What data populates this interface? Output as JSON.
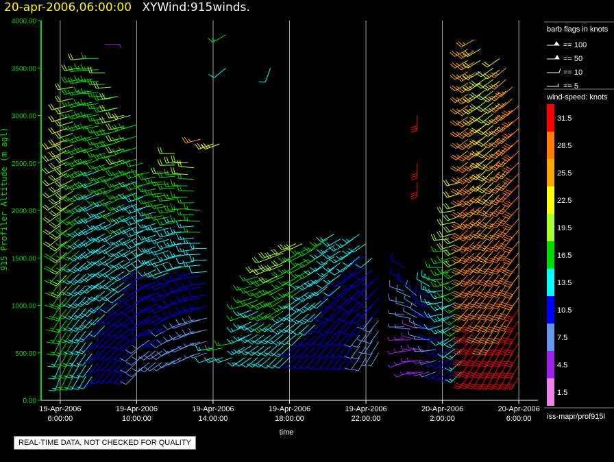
{
  "header": {
    "datetime": "20-apr-2006,06:00:00",
    "product": "XYWind:915winds."
  },
  "footer_note": "REAL-TIME DATA, NOT CHECKED FOR QUALITY",
  "source_label": "iss-mapr/prof915l",
  "barb_legend": {
    "title": "barb flags in knots",
    "items": [
      "== 100",
      "== 50",
      "== 10",
      "== 5"
    ]
  },
  "speed_legend": {
    "title": "wind-speed: knots",
    "bins": [
      {
        "label": "31.5",
        "color": "#ff0000"
      },
      {
        "label": "28.5",
        "color": "#ff7f00"
      },
      {
        "label": "25.5",
        "color": "#ffa500"
      },
      {
        "label": "22.5",
        "color": "#ffff00"
      },
      {
        "label": "19.5",
        "color": "#aaff33"
      },
      {
        "label": "16.5",
        "color": "#00dd00"
      },
      {
        "label": "13.5",
        "color": "#00ffff"
      },
      {
        "label": "10.5",
        "color": "#0000ff"
      },
      {
        "label": "7.5",
        "color": "#6495ed"
      },
      {
        "label": "4.5",
        "color": "#a020f0"
      },
      {
        "label": "1.5",
        "color": "#ee82ee"
      }
    ]
  },
  "chart_data": {
    "type": "scatter",
    "subtype": "wind-barb time-height",
    "xlabel": "time",
    "ylabel": "915 Profiler Altitude (m agl)",
    "xlim": [
      "2006-04-19 05:00",
      "2006-04-20 07:00"
    ],
    "ylim": [
      0,
      4000
    ],
    "y_ticks": [
      "0.00",
      "500.00",
      "1000.00",
      "1500.00",
      "2000.00",
      "2500.00",
      "3000.00",
      "3500.00",
      "4000.00"
    ],
    "x_ticks": [
      {
        "time": "2006-04-19 06:00",
        "date": "19-Apr-2006",
        "clock": "6:00:00"
      },
      {
        "time": "2006-04-19 10:00",
        "date": "19-Apr-2006",
        "clock": "10:00:00"
      },
      {
        "time": "2006-04-19 14:00",
        "date": "19-Apr-2006",
        "clock": "14:00:00"
      },
      {
        "time": "2006-04-19 18:00",
        "date": "19-Apr-2006",
        "clock": "18:00:00"
      },
      {
        "time": "2006-04-19 22:00",
        "date": "19-Apr-2006",
        "clock": "22:00:00"
      },
      {
        "time": "2006-04-20 02:00",
        "date": "20-Apr-2006",
        "clock": "2:00:00"
      },
      {
        "time": "2006-04-20 06:00",
        "date": "20-Apr-2006",
        "clock": "6:00:00"
      }
    ],
    "grid": "vertical lines at x ticks",
    "speed_units": "knots",
    "profiles": [
      {
        "time": "2006-04-19 06:00",
        "bottom": 250,
        "top": 2700,
        "spd0": 14,
        "spd1": 21,
        "dir0": 200,
        "dir1": 250
      },
      {
        "time": "2006-04-19 06:20",
        "bottom": 250,
        "top": 3100,
        "spd0": 16,
        "spd1": 22,
        "dir0": 205,
        "dir1": 255
      },
      {
        "time": "2006-04-19 06:40",
        "bottom": 250,
        "top": 3300,
        "spd0": 15,
        "spd1": 20,
        "dir0": 205,
        "dir1": 260
      },
      {
        "time": "2006-04-19 07:00",
        "bottom": 250,
        "top": 3500,
        "spd0": 13,
        "spd1": 18,
        "dir0": 210,
        "dir1": 260
      },
      {
        "time": "2006-04-19 07:20",
        "bottom": 250,
        "top": 3600,
        "spd0": 12,
        "spd1": 18,
        "dir0": 210,
        "dir1": 265
      },
      {
        "time": "2006-04-19 07:40",
        "bottom": 250,
        "top": 3500,
        "spd0": 12,
        "spd1": 17,
        "dir0": 215,
        "dir1": 265
      },
      {
        "time": "2006-04-19 08:00",
        "bottom": 280,
        "top": 3600,
        "spd0": 11,
        "spd1": 17,
        "dir0": 215,
        "dir1": 270
      },
      {
        "time": "2006-04-19 08:20",
        "bottom": 300,
        "top": 3450,
        "spd0": 11,
        "spd1": 18,
        "dir0": 215,
        "dir1": 270
      },
      {
        "time": "2006-04-19 08:40",
        "bottom": 300,
        "top": 3300,
        "spd0": 10,
        "spd1": 18,
        "dir0": 220,
        "dir1": 265
      },
      {
        "time": "2006-04-19 09:00",
        "bottom": 300,
        "top": 3200,
        "spd0": 10,
        "spd1": 19,
        "dir0": 220,
        "dir1": 260
      },
      {
        "time": "2006-04-19 09:20",
        "bottom": 300,
        "top": 3000,
        "spd0": 9,
        "spd1": 20,
        "dir0": 220,
        "dir1": 260
      },
      {
        "time": "2006-04-19 09:40",
        "bottom": 280,
        "top": 3000,
        "spd0": 9,
        "spd1": 18,
        "dir0": 225,
        "dir1": 255
      },
      {
        "time": "2006-04-19 10:00",
        "bottom": 280,
        "top": 2900,
        "spd0": 8,
        "spd1": 17,
        "dir0": 225,
        "dir1": 255
      },
      {
        "time": "2006-04-19 10:20",
        "bottom": 350,
        "top": 2500,
        "spd0": 8,
        "spd1": 16,
        "dir0": 230,
        "dir1": 255
      },
      {
        "time": "2006-04-19 10:40",
        "bottom": 400,
        "top": 2400,
        "spd0": 8,
        "spd1": 16,
        "dir0": 230,
        "dir1": 260
      },
      {
        "time": "2006-04-19 11:00",
        "bottom": 400,
        "top": 2350,
        "spd0": 8,
        "spd1": 16,
        "dir0": 230,
        "dir1": 260
      },
      {
        "time": "2006-04-19 11:20",
        "bottom": 400,
        "top": 2300,
        "spd0": 8,
        "spd1": 17,
        "dir0": 235,
        "dir1": 265
      },
      {
        "time": "2006-04-19 11:40",
        "bottom": 400,
        "top": 2400,
        "spd0": 7,
        "spd1": 18,
        "dir0": 235,
        "dir1": 265
      },
      {
        "time": "2006-04-19 12:00",
        "bottom": 420,
        "top": 2600,
        "spd0": 7,
        "spd1": 19,
        "dir0": 240,
        "dir1": 270
      },
      {
        "time": "2006-04-19 12:20",
        "bottom": 450,
        "top": 2500,
        "spd0": 7,
        "spd1": 18,
        "dir0": 240,
        "dir1": 270
      },
      {
        "time": "2006-04-19 12:40",
        "bottom": 450,
        "top": 2500,
        "spd0": 6,
        "spd1": 19,
        "dir0": 245,
        "dir1": 275
      },
      {
        "time": "2006-04-19 13:00",
        "bottom": 480,
        "top": 2450,
        "spd0": 6,
        "spd1": 18,
        "dir0": 245,
        "dir1": 275
      },
      {
        "time": "2006-04-19 13:20",
        "bottom": 500,
        "top": 2000,
        "spd0": 6,
        "spd1": 17,
        "dir0": 250,
        "dir1": 275
      },
      {
        "time": "2006-04-19 13:40",
        "bottom": 500,
        "top": 1600,
        "spd0": 6,
        "spd1": 14,
        "dir0": 250,
        "dir1": 270
      },
      {
        "time": "2006-04-19 14:00",
        "bottom": 450,
        "top": 550,
        "spd0": 12,
        "spd1": 14,
        "dir0": 250,
        "dir1": 260
      },
      {
        "time": "2006-04-19 14:30",
        "bottom": 450,
        "top": 550,
        "spd0": 13,
        "spd1": 15,
        "dir0": 250,
        "dir1": 260
      },
      {
        "time": "2006-04-19 15:00",
        "bottom": 450,
        "top": 600,
        "spd0": 14,
        "spd1": 15,
        "dir0": 250,
        "dir1": 260
      },
      {
        "time": "2006-04-19 15:40",
        "bottom": 450,
        "top": 1000,
        "spd0": 13,
        "spd1": 16,
        "dir0": 235,
        "dir1": 255
      },
      {
        "time": "2006-04-19 16:00",
        "bottom": 450,
        "top": 1200,
        "spd0": 12,
        "spd1": 16,
        "dir0": 235,
        "dir1": 255
      },
      {
        "time": "2006-04-19 16:20",
        "bottom": 450,
        "top": 1300,
        "spd0": 12,
        "spd1": 17,
        "dir0": 230,
        "dir1": 255
      },
      {
        "time": "2006-04-19 16:40",
        "bottom": 450,
        "top": 1400,
        "spd0": 13,
        "spd1": 18,
        "dir0": 230,
        "dir1": 250
      },
      {
        "time": "2006-04-19 17:00",
        "bottom": 450,
        "top": 1500,
        "spd0": 13,
        "spd1": 19,
        "dir0": 230,
        "dir1": 250
      },
      {
        "time": "2006-04-19 17:20",
        "bottom": 450,
        "top": 1550,
        "spd0": 12,
        "spd1": 20,
        "dir0": 225,
        "dir1": 250
      },
      {
        "time": "2006-04-19 17:40",
        "bottom": 450,
        "top": 1550,
        "spd0": 12,
        "spd1": 19,
        "dir0": 225,
        "dir1": 250
      },
      {
        "time": "2006-04-19 18:00",
        "bottom": 450,
        "top": 1600,
        "spd0": 12,
        "spd1": 19,
        "dir0": 225,
        "dir1": 245
      },
      {
        "time": "2006-04-19 18:20",
        "bottom": 450,
        "top": 1650,
        "spd0": 11,
        "spd1": 18,
        "dir0": 225,
        "dir1": 245
      },
      {
        "time": "2006-04-19 18:40",
        "bottom": 450,
        "top": 1650,
        "spd0": 11,
        "spd1": 18,
        "dir0": 220,
        "dir1": 245
      },
      {
        "time": "2006-04-19 19:00",
        "bottom": 450,
        "top": 1600,
        "spd0": 10,
        "spd1": 17,
        "dir0": 220,
        "dir1": 245
      },
      {
        "time": "2006-04-19 19:20",
        "bottom": 450,
        "top": 1600,
        "spd0": 10,
        "spd1": 17,
        "dir0": 220,
        "dir1": 240
      },
      {
        "time": "2006-04-19 19:40",
        "bottom": 450,
        "top": 1650,
        "spd0": 10,
        "spd1": 16,
        "dir0": 220,
        "dir1": 240
      },
      {
        "time": "2006-04-19 20:00",
        "bottom": 450,
        "top": 1700,
        "spd0": 9,
        "spd1": 15,
        "dir0": 215,
        "dir1": 240
      },
      {
        "time": "2006-04-19 20:20",
        "bottom": 450,
        "top": 1750,
        "spd0": 9,
        "spd1": 14,
        "dir0": 215,
        "dir1": 240
      },
      {
        "time": "2006-04-19 20:40",
        "bottom": 450,
        "top": 1700,
        "spd0": 9,
        "spd1": 14,
        "dir0": 215,
        "dir1": 240
      },
      {
        "time": "2006-04-19 21:00",
        "bottom": 450,
        "top": 1650,
        "spd0": 9,
        "spd1": 13,
        "dir0": 215,
        "dir1": 240
      },
      {
        "time": "2006-04-19 21:20",
        "bottom": 450,
        "top": 1700,
        "spd0": 9,
        "spd1": 13,
        "dir0": 215,
        "dir1": 235
      },
      {
        "time": "2006-04-19 21:40",
        "bottom": 450,
        "top": 1750,
        "spd0": 8,
        "spd1": 13,
        "dir0": 215,
        "dir1": 235
      },
      {
        "time": "2006-04-19 22:00",
        "bottom": 450,
        "top": 1650,
        "spd0": 8,
        "spd1": 12,
        "dir0": 210,
        "dir1": 235
      },
      {
        "time": "2006-04-19 22:20",
        "bottom": 500,
        "top": 1500,
        "spd0": 7,
        "spd1": 12,
        "dir0": 210,
        "dir1": 230
      },
      {
        "time": "2006-04-19 22:40",
        "bottom": 500,
        "top": 1300,
        "spd0": 7,
        "spd1": 11,
        "dir0": 210,
        "dir1": 230
      },
      {
        "time": "2006-04-20 00:00",
        "bottom": 400,
        "top": 1400,
        "spd0": 4,
        "spd1": 10,
        "dir0": 250,
        "dir1": 300
      },
      {
        "time": "2006-04-20 00:20",
        "bottom": 300,
        "top": 1200,
        "spd0": 4,
        "spd1": 9,
        "dir0": 250,
        "dir1": 300
      },
      {
        "time": "2006-04-20 00:40",
        "bottom": 300,
        "top": 1100,
        "spd0": 3,
        "spd1": 8,
        "dir0": 260,
        "dir1": 310
      },
      {
        "time": "2006-04-20 01:00",
        "bottom": 300,
        "top": 1000,
        "spd0": 3,
        "spd1": 9,
        "dir0": 260,
        "dir1": 310
      },
      {
        "time": "2006-04-20 01:20",
        "bottom": 300,
        "top": 1200,
        "spd0": 4,
        "spd1": 12,
        "dir0": 255,
        "dir1": 300
      },
      {
        "time": "2006-04-20 01:40",
        "bottom": 300,
        "top": 1250,
        "spd0": 6,
        "spd1": 14,
        "dir0": 250,
        "dir1": 290
      },
      {
        "time": "2006-04-20 02:00",
        "bottom": 300,
        "top": 1400,
        "spd0": 9,
        "spd1": 16,
        "dir0": 240,
        "dir1": 270
      },
      {
        "time": "2006-04-20 02:20",
        "bottom": 300,
        "top": 1700,
        "spd0": 10,
        "spd1": 18,
        "dir0": 235,
        "dir1": 265
      },
      {
        "time": "2006-04-20 02:40",
        "bottom": 300,
        "top": 2000,
        "spd0": 11,
        "spd1": 20,
        "dir0": 230,
        "dir1": 260
      },
      {
        "time": "2006-04-20 03:00",
        "bottom": 300,
        "top": 2300,
        "spd0": 13,
        "spd1": 22,
        "dir0": 225,
        "dir1": 255
      },
      {
        "time": "2006-04-20 03:20",
        "bottom": 250,
        "top": 3700,
        "spd0": 31,
        "spd1": 24,
        "dir0": 215,
        "dir1": 240
      },
      {
        "time": "2006-04-20 03:40",
        "bottom": 250,
        "top": 3800,
        "spd0": 31,
        "spd1": 25,
        "dir0": 215,
        "dir1": 240
      },
      {
        "time": "2006-04-20 04:00",
        "bottom": 250,
        "top": 3700,
        "spd0": 31,
        "spd1": 22,
        "dir0": 215,
        "dir1": 240
      },
      {
        "time": "2006-04-20 04:20",
        "bottom": 250,
        "top": 3400,
        "spd0": 31,
        "spd1": 20,
        "dir0": 210,
        "dir1": 235
      },
      {
        "time": "2006-04-20 04:40",
        "bottom": 250,
        "top": 3500,
        "spd0": 31,
        "spd1": 19,
        "dir0": 210,
        "dir1": 235
      },
      {
        "time": "2006-04-20 05:00",
        "bottom": 250,
        "top": 3600,
        "spd0": 31,
        "spd1": 22,
        "dir0": 210,
        "dir1": 235
      },
      {
        "time": "2006-04-20 05:20",
        "bottom": 250,
        "top": 3500,
        "spd0": 31,
        "spd1": 24,
        "dir0": 210,
        "dir1": 230
      },
      {
        "time": "2006-04-20 05:40",
        "bottom": 250,
        "top": 3300,
        "spd0": 31,
        "spd1": 25,
        "dir0": 210,
        "dir1": 230
      },
      {
        "time": "2006-04-20 06:00",
        "bottom": 250,
        "top": 3100,
        "spd0": 31,
        "spd1": 27,
        "dir0": 210,
        "dir1": 230
      }
    ],
    "isolated_barbs": [
      {
        "time": "2006-04-19 14:40",
        "alt": 3850,
        "spd": 17,
        "dir": 240
      },
      {
        "time": "2006-04-19 14:40",
        "alt": 3500,
        "spd": 12,
        "dir": 230
      },
      {
        "time": "2006-04-19 14:00",
        "alt": 2700,
        "spd": 23,
        "dir": 250
      },
      {
        "time": "2006-04-19 14:20",
        "alt": 2700,
        "spd": 23,
        "dir": 250
      },
      {
        "time": "2006-04-19 13:20",
        "alt": 2750,
        "spd": 25,
        "dir": 255
      },
      {
        "time": "2006-04-19 17:00",
        "alt": 3500,
        "spd": 12,
        "dir": 200
      },
      {
        "time": "2006-04-20 00:40",
        "alt": 3000,
        "spd": 32,
        "dir": 180
      },
      {
        "time": "2006-04-20 00:40",
        "alt": 2500,
        "spd": 32,
        "dir": 180
      },
      {
        "time": "2006-04-20 00:40",
        "alt": 2300,
        "spd": 32,
        "dir": 180
      },
      {
        "time": "2006-04-19 08:20",
        "alt": 3750,
        "spd": 5,
        "dir": 90
      }
    ]
  }
}
